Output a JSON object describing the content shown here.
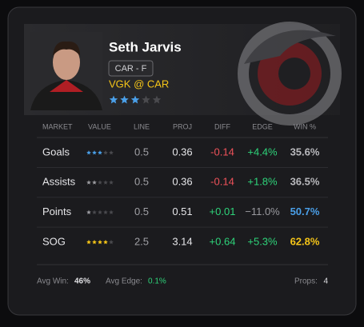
{
  "player": {
    "name": "Seth Jarvis",
    "badge": "CAR - F",
    "matchup": "VGK @ CAR",
    "rating": 3,
    "rating_color": "#4a9fe8"
  },
  "table": {
    "columns": [
      "MARKET",
      "VALUE",
      "LINE",
      "PROJ",
      "DIFF",
      "EDGE",
      "WIN %"
    ],
    "rows": [
      {
        "market": "Goals",
        "value_rating": 3,
        "star_color": "#4a9fe8",
        "line": "0.5",
        "proj": "0.36",
        "diff": "-0.14",
        "diff_color": "#f0525a",
        "edge": "+4.4%",
        "edge_color": "#2ed47a",
        "win": "35.6%",
        "win_color": "#b9b9bd"
      },
      {
        "market": "Assists",
        "value_rating": 2,
        "star_color": "#9a9a9f",
        "line": "0.5",
        "proj": "0.36",
        "diff": "-0.14",
        "diff_color": "#f0525a",
        "edge": "+1.8%",
        "edge_color": "#2ed47a",
        "win": "36.5%",
        "win_color": "#b9b9bd"
      },
      {
        "market": "Points",
        "value_rating": 1,
        "star_color": "#9a9a9f",
        "line": "0.5",
        "proj": "0.51",
        "diff": "+0.01",
        "diff_color": "#2ed47a",
        "edge": "−11.0%",
        "edge_color": "#9a9a9f",
        "win": "50.7%",
        "win_color": "#4a9fe8"
      },
      {
        "market": "SOG",
        "value_rating": 4,
        "star_color": "#f5c518",
        "line": "2.5",
        "proj": "3.14",
        "diff": "+0.64",
        "diff_color": "#2ed47a",
        "edge": "+5.3%",
        "edge_color": "#2ed47a",
        "win": "62.8%",
        "win_color": "#f5c518"
      }
    ]
  },
  "footer": {
    "avg_win_label": "Avg Win:",
    "avg_win": "46%",
    "avg_edge_label": "Avg Edge:",
    "avg_edge": "0.1%",
    "props_label": "Props:",
    "props": "4"
  }
}
